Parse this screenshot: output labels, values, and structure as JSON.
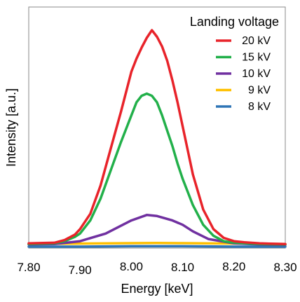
{
  "chart_data": {
    "type": "line",
    "xlabel": "Energy [keV]",
    "ylabel": "Intensity [a.u.]",
    "xlim": [
      7.8,
      8.3
    ],
    "ylim": [
      0,
      1.0
    ],
    "xticks": [
      "7.80",
      "7.90",
      "8.00",
      "8.10",
      "8.20",
      "8.30"
    ],
    "legend": {
      "title": "Landing voltage",
      "position": "top-right"
    },
    "grid": false,
    "series": [
      {
        "name": "20 kV",
        "color": "#e8232a",
        "x": [
          7.8,
          7.85,
          7.87,
          7.89,
          7.9,
          7.92,
          7.94,
          7.96,
          7.98,
          7.99,
          8.0,
          8.01,
          8.02,
          8.03,
          8.04,
          8.05,
          8.06,
          8.07,
          8.08,
          8.09,
          8.1,
          8.12,
          8.14,
          8.16,
          8.18,
          8.2,
          8.22,
          8.25,
          8.3
        ],
        "y": [
          0.015,
          0.018,
          0.03,
          0.055,
          0.08,
          0.15,
          0.28,
          0.45,
          0.62,
          0.71,
          0.8,
          0.86,
          0.91,
          0.955,
          0.99,
          0.96,
          0.915,
          0.85,
          0.76,
          0.66,
          0.55,
          0.33,
          0.17,
          0.08,
          0.04,
          0.025,
          0.02,
          0.015,
          0.012
        ]
      },
      {
        "name": "15 kV",
        "color": "#22b04a",
        "x": [
          7.8,
          7.85,
          7.87,
          7.89,
          7.9,
          7.92,
          7.94,
          7.96,
          7.98,
          8.0,
          8.01,
          8.02,
          8.03,
          8.04,
          8.05,
          8.06,
          8.07,
          8.08,
          8.09,
          8.1,
          8.12,
          8.14,
          8.16,
          8.18,
          8.2,
          8.22,
          8.25,
          8.3
        ],
        "y": [
          0.012,
          0.015,
          0.025,
          0.045,
          0.06,
          0.12,
          0.22,
          0.35,
          0.48,
          0.6,
          0.66,
          0.69,
          0.7,
          0.69,
          0.66,
          0.6,
          0.53,
          0.46,
          0.38,
          0.31,
          0.19,
          0.1,
          0.05,
          0.025,
          0.018,
          0.015,
          0.012,
          0.01
        ]
      },
      {
        "name": "10 kV",
        "color": "#7030a0",
        "x": [
          7.8,
          7.85,
          7.9,
          7.95,
          8.0,
          8.03,
          8.05,
          8.08,
          8.1,
          8.12,
          8.15,
          8.2,
          8.25,
          8.3
        ],
        "y": [
          0.01,
          0.012,
          0.025,
          0.06,
          0.12,
          0.145,
          0.14,
          0.12,
          0.1,
          0.07,
          0.035,
          0.015,
          0.01,
          0.008
        ]
      },
      {
        "name": "9 kV",
        "color": "#ffc000",
        "x": [
          7.8,
          7.9,
          8.0,
          8.05,
          8.1,
          8.2,
          8.3
        ],
        "y": [
          0.012,
          0.014,
          0.016,
          0.017,
          0.016,
          0.014,
          0.012
        ]
      },
      {
        "name": "8 kV",
        "color": "#2e75b6",
        "x": [
          7.8,
          7.9,
          8.0,
          8.05,
          8.1,
          8.2,
          8.3
        ],
        "y": [
          0.0,
          0.0,
          0.002,
          0.002,
          0.002,
          0.0,
          0.0
        ]
      }
    ]
  }
}
